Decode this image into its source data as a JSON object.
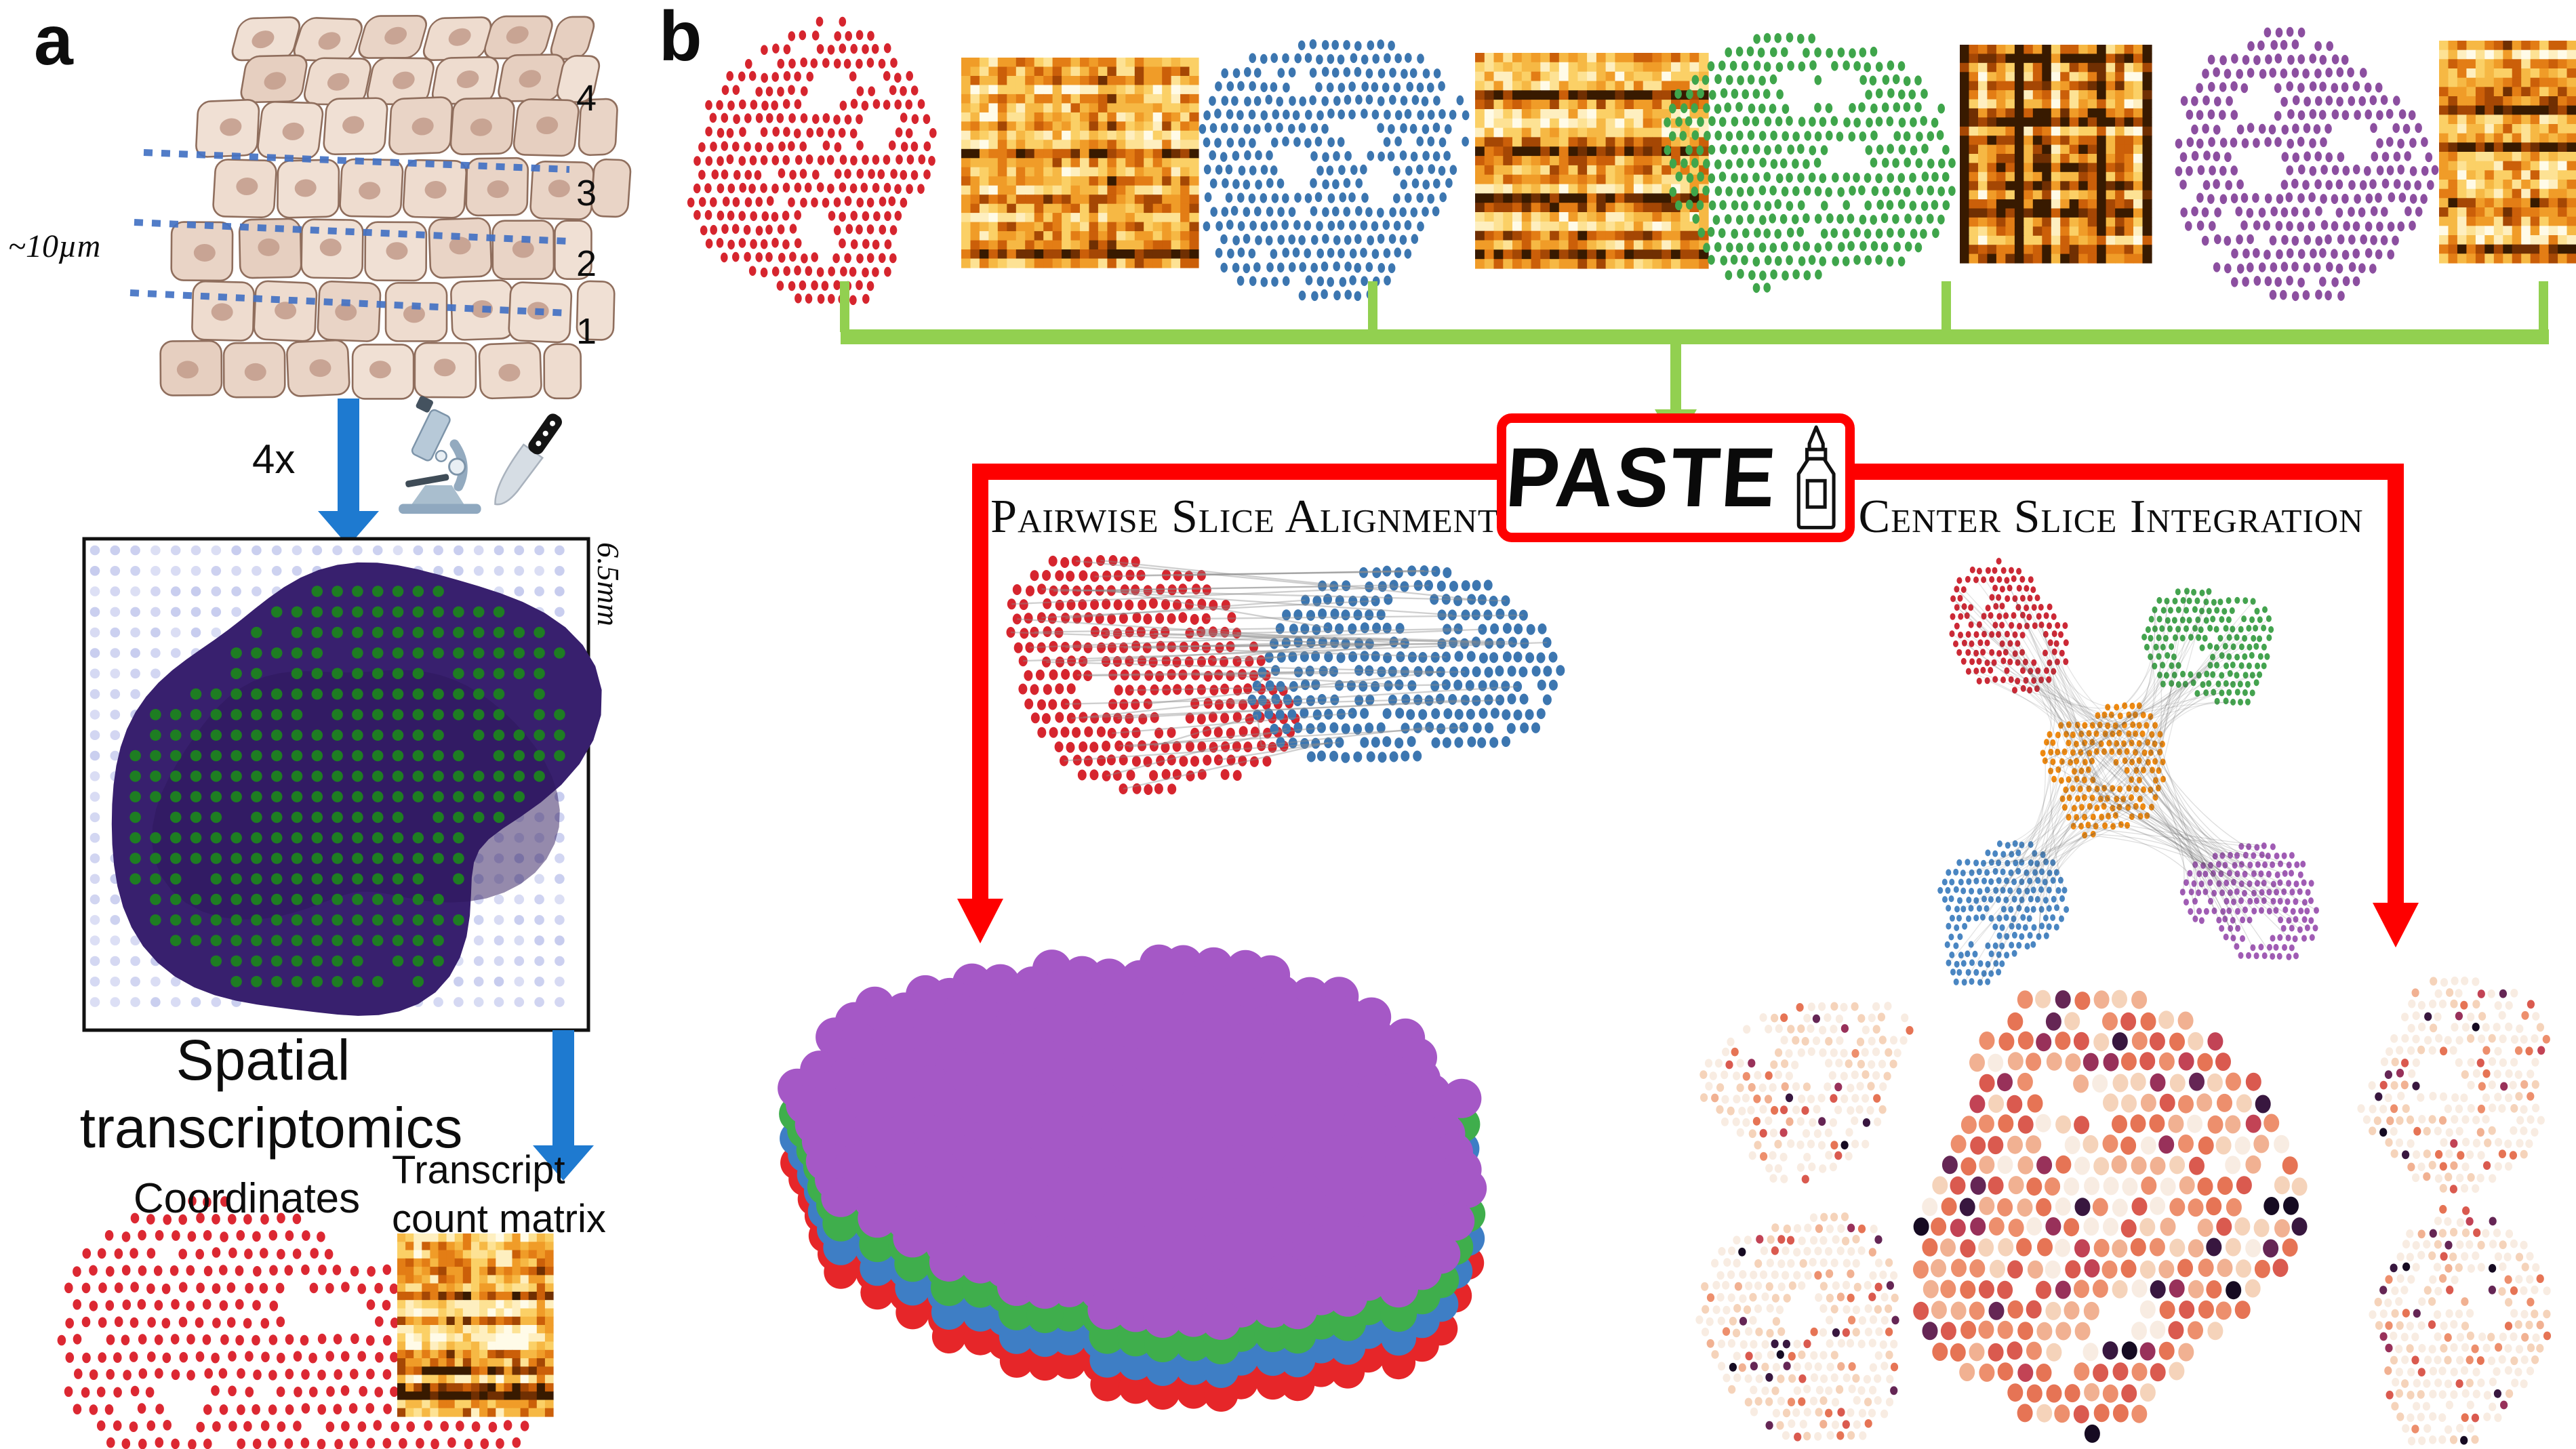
{
  "figure": {
    "type": "method-overview-diagram",
    "panels": {
      "a_label": "a",
      "b_label": "b"
    }
  },
  "panel_a": {
    "tissue_block": {
      "slice_numbers": [
        "4",
        "3",
        "2",
        "1"
      ],
      "thickness_label": "~10µm",
      "slice_line_color": "#4472c4",
      "cell_fills": [
        "#eedccf",
        "#e9d4c6",
        "#f0e0d4",
        "#e6cfc0"
      ],
      "cell_stroke": "#8f6e5d",
      "nucleus_fill": "#c49e8e"
    },
    "sectioning": {
      "count_label": "4x",
      "icons": [
        "microscope-icon",
        "knife-icon"
      ],
      "arrow_color": "#1e7ad0"
    },
    "st_box": {
      "scale_label": "6.5mm",
      "border_color": "#111111",
      "grid_dot_color": "#c6cbee",
      "tissue_fill": "#38206e",
      "tissue_inner_fill": "#2c1659",
      "spot_color": "#1e7d22"
    },
    "caption_lines": [
      "Spatial",
      "transcriptomics"
    ],
    "coordinates_label": "Coordinates",
    "coordinates_dot_color": "#dc2832",
    "matrix_label_lines": [
      "Transcript",
      "count matrix"
    ]
  },
  "panel_b": {
    "slices": [
      {
        "name": "slice-1",
        "dot_color": "#d6252e"
      },
      {
        "name": "slice-2",
        "dot_color": "#3c76b0"
      },
      {
        "name": "slice-3",
        "dot_color": "#3fa54b"
      },
      {
        "name": "slice-4",
        "dot_color": "#8c4fa0"
      }
    ],
    "bracket_color": "#92d050",
    "paste_box": {
      "label": "PASTE",
      "border_color": "#fe0000",
      "icon": "glue-bottle-icon"
    },
    "branch_color": "#fe0000",
    "left_branch": {
      "label": "Pairwise Slice Alignment",
      "cloud_colors": [
        "#d6252e",
        "#3c76b0"
      ],
      "link_color": "#8e8e8e"
    },
    "right_branch": {
      "label": "Center Slice Integration",
      "cloud_colors": {
        "red": "#cc2936",
        "green": "#44a34f",
        "blue": "#4a86c2",
        "purple": "#a05cb4",
        "center_orange": "#f08a10"
      },
      "link_color": "#555555"
    },
    "stack_colors": {
      "bottom_red": "#e62629",
      "blue": "#3e7ec5",
      "green": "#3fae4c",
      "top_purple": "#a558c6"
    },
    "heatmap_palette": [
      "#fffbe8",
      "#feefc0",
      "#fde294",
      "#fbd066",
      "#f6b844",
      "#f09c28",
      "#e37d15",
      "#cb5f09",
      "#a54704",
      "#702f02",
      "#381a00"
    ],
    "result_palette": [
      "#f8ece2",
      "#f5d3ba",
      "#f1b192",
      "#ed8f6d",
      "#e67455",
      "#da5a4f",
      "#c24355",
      "#98315a",
      "#652655",
      "#38173f",
      "#160b22"
    ]
  }
}
